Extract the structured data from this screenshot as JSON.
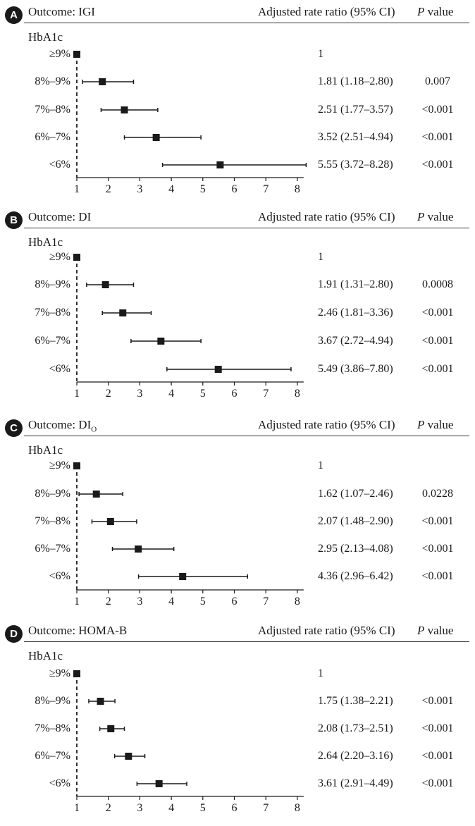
{
  "header": {
    "ratio_col": "Adjusted rate ratio (95% CI)",
    "p_col_italic": "P",
    "p_col_rest": " value"
  },
  "group_label": "HbA1c",
  "row_labels": [
    "≥9%",
    "8%–9%",
    "7%–8%",
    "6%–7%",
    "<6%"
  ],
  "colors": {
    "ink": "#1a1a1a"
  },
  "chart_data": [
    {
      "type": "forest",
      "panel": "A",
      "title": "Outcome: IGI",
      "x_ticks": [
        "1",
        "2",
        "3",
        "4",
        "5",
        "6",
        "7",
        "8"
      ],
      "xlim": [
        1,
        8.2
      ],
      "reference_line": 1,
      "rows": [
        {
          "label": "≥9%",
          "estimate": 1,
          "lower": 1,
          "upper": 1,
          "rr_text": "1",
          "p_text": ""
        },
        {
          "label": "8%–9%",
          "estimate": 1.81,
          "lower": 1.18,
          "upper": 2.8,
          "rr_text": "1.81 (1.18–2.80)",
          "p_text": "0.007"
        },
        {
          "label": "7%–8%",
          "estimate": 2.51,
          "lower": 1.77,
          "upper": 3.57,
          "rr_text": "2.51 (1.77–3.57)",
          "p_text": "<0.001"
        },
        {
          "label": "6%–7%",
          "estimate": 3.52,
          "lower": 2.51,
          "upper": 4.94,
          "rr_text": "3.52 (2.51–4.94)",
          "p_text": "<0.001"
        },
        {
          "label": "<6%",
          "estimate": 5.55,
          "lower": 3.72,
          "upper": 8.28,
          "rr_text": "5.55 (3.72–8.28)",
          "p_text": "<0.001"
        }
      ]
    },
    {
      "type": "forest",
      "panel": "B",
      "title": "Outcome: DI",
      "x_ticks": [
        "1",
        "2",
        "3",
        "4",
        "5",
        "6",
        "7",
        "8"
      ],
      "xlim": [
        1,
        8.2
      ],
      "reference_line": 1,
      "rows": [
        {
          "label": "≥9%",
          "estimate": 1,
          "lower": 1,
          "upper": 1,
          "rr_text": "1",
          "p_text": ""
        },
        {
          "label": "8%–9%",
          "estimate": 1.91,
          "lower": 1.31,
          "upper": 2.8,
          "rr_text": "1.91 (1.31–2.80)",
          "p_text": "0.0008"
        },
        {
          "label": "7%–8%",
          "estimate": 2.46,
          "lower": 1.81,
          "upper": 3.36,
          "rr_text": "2.46 (1.81–3.36)",
          "p_text": "<0.001"
        },
        {
          "label": "6%–7%",
          "estimate": 3.67,
          "lower": 2.72,
          "upper": 4.94,
          "rr_text": "3.67 (2.72–4.94)",
          "p_text": "<0.001"
        },
        {
          "label": "<6%",
          "estimate": 5.49,
          "lower": 3.86,
          "upper": 7.8,
          "rr_text": "5.49 (3.86–7.80)",
          "p_text": "<0.001"
        }
      ]
    },
    {
      "type": "forest",
      "panel": "C",
      "title": "Outcome: DI",
      "title_subscript": "O",
      "x_ticks": [
        "1",
        "2",
        "3",
        "4",
        "5",
        "6",
        "7",
        "8"
      ],
      "xlim": [
        1,
        8.2
      ],
      "reference_line": 1,
      "rows": [
        {
          "label": "≥9%",
          "estimate": 1,
          "lower": 1,
          "upper": 1,
          "rr_text": "1",
          "p_text": ""
        },
        {
          "label": "8%–9%",
          "estimate": 1.62,
          "lower": 1.07,
          "upper": 2.46,
          "rr_text": "1.62 (1.07–2.46)",
          "p_text": "0.0228"
        },
        {
          "label": "7%–8%",
          "estimate": 2.07,
          "lower": 1.48,
          "upper": 2.9,
          "rr_text": "2.07 (1.48–2.90)",
          "p_text": "<0.001"
        },
        {
          "label": "6%–7%",
          "estimate": 2.95,
          "lower": 2.13,
          "upper": 4.08,
          "rr_text": "2.95 (2.13–4.08)",
          "p_text": "<0.001"
        },
        {
          "label": "<6%",
          "estimate": 4.36,
          "lower": 2.96,
          "upper": 6.42,
          "rr_text": "4.36 (2.96–6.42)",
          "p_text": "<0.001"
        }
      ]
    },
    {
      "type": "forest",
      "panel": "D",
      "title": "Outcome: HOMA-B",
      "x_ticks": [
        "1",
        "2",
        "3",
        "4",
        "5",
        "6",
        "7",
        "8"
      ],
      "xlim": [
        1,
        8.2
      ],
      "reference_line": 1,
      "rows": [
        {
          "label": "≥9%",
          "estimate": 1,
          "lower": 1,
          "upper": 1,
          "rr_text": "1",
          "p_text": ""
        },
        {
          "label": "8%–9%",
          "estimate": 1.75,
          "lower": 1.38,
          "upper": 2.21,
          "rr_text": "1.75 (1.38–2.21)",
          "p_text": "<0.001"
        },
        {
          "label": "7%–8%",
          "estimate": 2.08,
          "lower": 1.73,
          "upper": 2.51,
          "rr_text": "2.08 (1.73–2.51)",
          "p_text": "<0.001"
        },
        {
          "label": "6%–7%",
          "estimate": 2.64,
          "lower": 2.2,
          "upper": 3.16,
          "rr_text": "2.64 (2.20–3.16)",
          "p_text": "<0.001"
        },
        {
          "label": "<6%",
          "estimate": 3.61,
          "lower": 2.91,
          "upper": 4.49,
          "rr_text": "3.61 (2.91–4.49)",
          "p_text": "<0.001"
        }
      ]
    }
  ]
}
